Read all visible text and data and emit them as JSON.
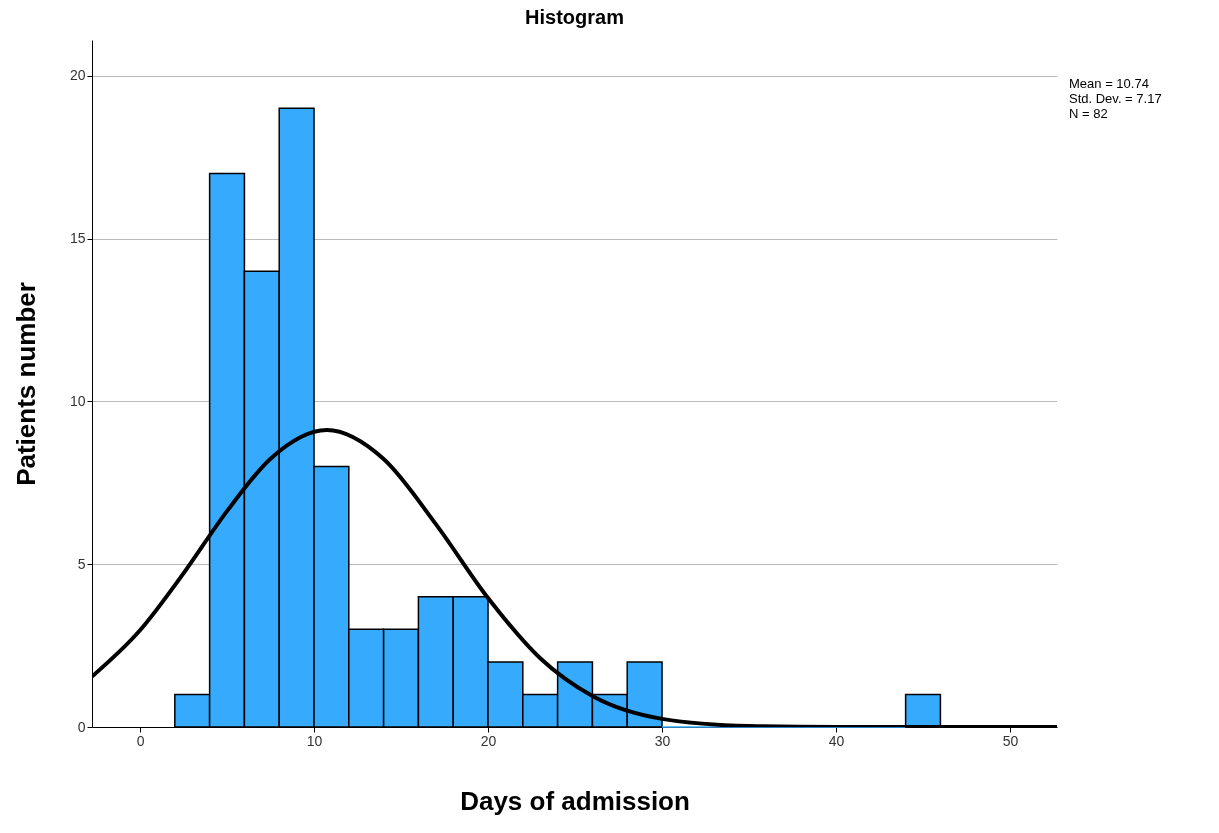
{
  "chart_data": {
    "type": "histogram",
    "title": "Histogram",
    "xlabel": "Days of admission",
    "ylabel": "Patients number",
    "bins": [
      2,
      4,
      6,
      8,
      10,
      12,
      14,
      16,
      18,
      20,
      22,
      24,
      26,
      28,
      30,
      32,
      34,
      36,
      38,
      40,
      42,
      44,
      46
    ],
    "values": [
      1,
      17,
      14,
      19,
      8,
      3,
      3,
      4,
      4,
      2,
      1,
      2,
      1,
      2,
      0,
      0,
      0,
      0,
      0,
      0,
      0,
      1
    ],
    "color": "#36abfd",
    "series": [
      {
        "type": "line",
        "color": "#000000",
        "x": [
          -2.76,
          0,
          2.5,
          5,
          7.5,
          10.74,
          14,
          17,
          20,
          23,
          26,
          30,
          35,
          40,
          52.7
        ],
        "values": [
          1.55,
          2.97,
          4.72,
          6.63,
          8.24,
          9.12,
          8.23,
          6.23,
          3.96,
          2.11,
          0.95,
          0.25,
          0.03,
          0,
          0
        ]
      }
    ],
    "xlim": [
      -2.76,
      52.7
    ],
    "ylim": [
      0,
      21.1
    ],
    "xticks": [
      0,
      10,
      20,
      30,
      40,
      50
    ],
    "yticks": [
      0,
      5,
      10,
      15,
      20
    ],
    "grid": "y",
    "annotations": [
      "Mean = 10.74",
      "Std. Dev. = 7.17",
      "N = 82"
    ]
  }
}
